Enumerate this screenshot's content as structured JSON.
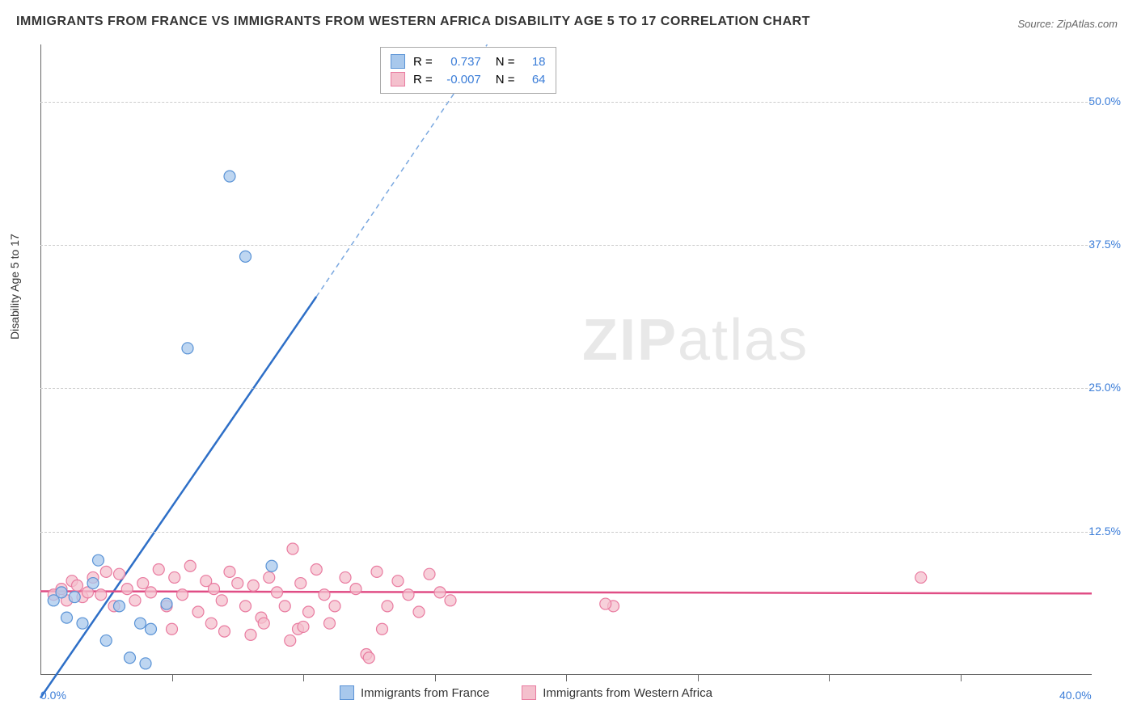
{
  "title": "IMMIGRANTS FROM FRANCE VS IMMIGRANTS FROM WESTERN AFRICA DISABILITY AGE 5 TO 17 CORRELATION CHART",
  "source": "Source: ZipAtlas.com",
  "ylabel": "Disability Age 5 to 17",
  "watermark_a": "ZIP",
  "watermark_b": "atlas",
  "chart": {
    "type": "scatter",
    "xlim": [
      0,
      40
    ],
    "ylim": [
      0,
      55
    ],
    "xticks": [
      0,
      40
    ],
    "xtick_labels": [
      "0.0%",
      "40.0%"
    ],
    "xtick_minor": [
      5,
      10,
      15,
      20,
      25,
      30,
      35
    ],
    "yticks": [
      12.5,
      25.0,
      37.5,
      50.0
    ],
    "ytick_labels": [
      "12.5%",
      "25.0%",
      "37.5%",
      "50.0%"
    ],
    "grid_color": "#cccccc",
    "background_color": "#ffffff",
    "series": [
      {
        "name": "Immigrants from France",
        "color_fill": "#a8c8ec",
        "color_stroke": "#5a93d6",
        "marker_size": 7,
        "line_color": "#2e6fc7",
        "line_dash_color": "#7aa8e0",
        "trend": {
          "x1": 0,
          "y1": -2,
          "x2": 10.5,
          "y2": 33,
          "dash_to_x": 17,
          "dash_to_y": 55
        },
        "points": [
          [
            0.5,
            6.5
          ],
          [
            0.8,
            7.2
          ],
          [
            1.0,
            5.0
          ],
          [
            1.3,
            6.8
          ],
          [
            1.6,
            4.5
          ],
          [
            2.0,
            8.0
          ],
          [
            2.2,
            10.0
          ],
          [
            2.5,
            3.0
          ],
          [
            3.0,
            6.0
          ],
          [
            3.4,
            1.5
          ],
          [
            3.8,
            4.5
          ],
          [
            4.2,
            4.0
          ],
          [
            4.8,
            6.2
          ],
          [
            5.6,
            28.5
          ],
          [
            7.2,
            43.5
          ],
          [
            7.8,
            36.5
          ],
          [
            8.8,
            9.5
          ],
          [
            4.0,
            1.0
          ]
        ]
      },
      {
        "name": "Immigrants from Western Africa",
        "color_fill": "#f4c0cd",
        "color_stroke": "#e97ba0",
        "marker_size": 7,
        "line_color": "#e04d85",
        "trend": {
          "x1": 0,
          "y1": 7.3,
          "x2": 40,
          "y2": 7.1
        },
        "points": [
          [
            0.5,
            7.0
          ],
          [
            0.8,
            7.5
          ],
          [
            1.0,
            6.5
          ],
          [
            1.2,
            8.2
          ],
          [
            1.4,
            7.8
          ],
          [
            1.6,
            6.8
          ],
          [
            1.8,
            7.2
          ],
          [
            2.0,
            8.5
          ],
          [
            2.3,
            7.0
          ],
          [
            2.5,
            9.0
          ],
          [
            2.8,
            6.0
          ],
          [
            3.0,
            8.8
          ],
          [
            3.3,
            7.5
          ],
          [
            3.6,
            6.5
          ],
          [
            3.9,
            8.0
          ],
          [
            4.2,
            7.2
          ],
          [
            4.5,
            9.2
          ],
          [
            4.8,
            6.0
          ],
          [
            5.1,
            8.5
          ],
          [
            5.4,
            7.0
          ],
          [
            5.7,
            9.5
          ],
          [
            6.0,
            5.5
          ],
          [
            6.3,
            8.2
          ],
          [
            6.6,
            7.5
          ],
          [
            6.9,
            6.5
          ],
          [
            7.2,
            9.0
          ],
          [
            7.5,
            8.0
          ],
          [
            7.8,
            6.0
          ],
          [
            8.1,
            7.8
          ],
          [
            8.4,
            5.0
          ],
          [
            8.7,
            8.5
          ],
          [
            9.0,
            7.2
          ],
          [
            9.3,
            6.0
          ],
          [
            9.6,
            11.0
          ],
          [
            9.9,
            8.0
          ],
          [
            10.2,
            5.5
          ],
          [
            10.5,
            9.2
          ],
          [
            10.8,
            7.0
          ],
          [
            11.2,
            6.0
          ],
          [
            11.6,
            8.5
          ],
          [
            12.0,
            7.5
          ],
          [
            12.4,
            1.8
          ],
          [
            12.5,
            1.5
          ],
          [
            12.8,
            9.0
          ],
          [
            13.2,
            6.0
          ],
          [
            13.6,
            8.2
          ],
          [
            14.0,
            7.0
          ],
          [
            14.4,
            5.5
          ],
          [
            14.8,
            8.8
          ],
          [
            15.2,
            7.2
          ],
          [
            15.6,
            6.5
          ],
          [
            8.5,
            4.5
          ],
          [
            9.8,
            4.0
          ],
          [
            6.5,
            4.5
          ],
          [
            5.0,
            4.0
          ],
          [
            10.0,
            4.2
          ],
          [
            7.0,
            3.8
          ],
          [
            11.0,
            4.5
          ],
          [
            13.0,
            4.0
          ],
          [
            8.0,
            3.5
          ],
          [
            9.5,
            3.0
          ],
          [
            21.8,
            6.0
          ],
          [
            21.5,
            6.2
          ],
          [
            33.5,
            8.5
          ]
        ]
      }
    ]
  },
  "stats": {
    "rows": [
      {
        "swatch_fill": "#a8c8ec",
        "swatch_stroke": "#5a93d6",
        "r_label": "R =",
        "r_value": "0.737",
        "n_label": "N =",
        "n_value": "18"
      },
      {
        "swatch_fill": "#f4c0cd",
        "swatch_stroke": "#e97ba0",
        "r_label": "R =",
        "r_value": "-0.007",
        "n_label": "N =",
        "n_value": "64"
      }
    ]
  },
  "legend": {
    "items": [
      {
        "swatch_fill": "#a8c8ec",
        "swatch_stroke": "#5a93d6",
        "label": "Immigrants from France"
      },
      {
        "swatch_fill": "#f4c0cd",
        "swatch_stroke": "#e97ba0",
        "label": "Immigrants from Western Africa"
      }
    ]
  }
}
